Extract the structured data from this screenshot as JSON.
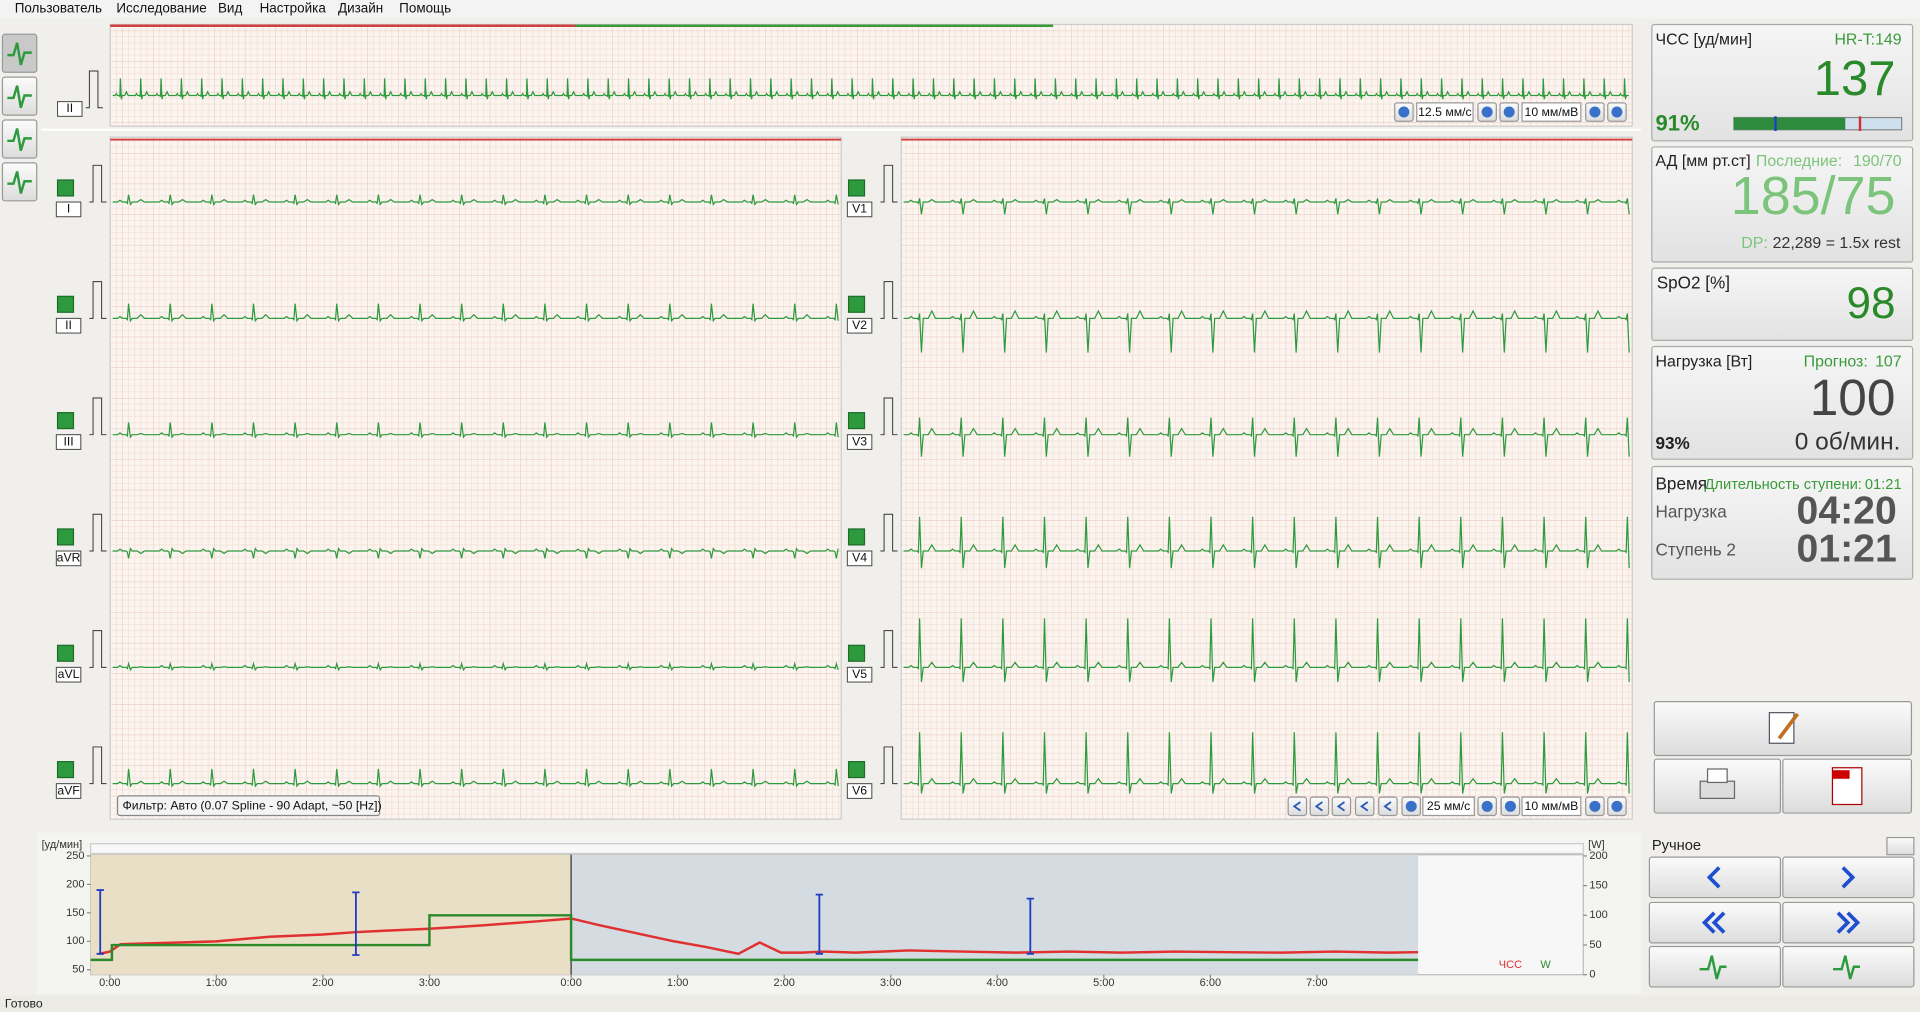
{
  "menu": [
    "Пользователь",
    "Исследование",
    "Вид",
    "Настройка",
    "Дизайн",
    "Помощь"
  ],
  "top_strip": {
    "lead": "II",
    "speed": "12.5 мм/с",
    "gain": "10 мм/мВ"
  },
  "leads_left": [
    "I",
    "II",
    "III",
    "aVR",
    "aVL",
    "aVF"
  ],
  "leads_right": [
    "V1",
    "V2",
    "V3",
    "V4",
    "V5",
    "V6"
  ],
  "filter": "Фильтр: Авто (0.07 Spline - 90 Adapt, ~50 [Hz])",
  "bottom_toolbar": {
    "speed": "25 мм/с",
    "gain": "10 мм/мВ"
  },
  "vitals": {
    "hr": {
      "title": "ЧСС [уд/мин]",
      "target": "HR-T:149",
      "value": "137",
      "percent": "91%"
    },
    "bp": {
      "title": "АД [мм рт.ст]",
      "last_label": "Последние:",
      "last": "190/70",
      "value": "185/75",
      "dp_label": "DP:",
      "dp": "22,289 = 1.5x rest"
    },
    "spo2": {
      "title": "SpO2 [%]",
      "value": "98"
    },
    "load": {
      "title": "Нагрузка [Вт]",
      "forecast_label": "Прогноз:",
      "forecast": "107",
      "value": "100",
      "percent": "93%",
      "rpm": "0 об/мин."
    },
    "time": {
      "title": "Время",
      "stage_duration_label": "Длительность ступени:",
      "stage_duration": "01:21",
      "load_label": "Нагрузка",
      "load_time": "04:20",
      "stage_label": "Ступень 2",
      "stage_time": "01:21"
    }
  },
  "trend": {
    "y_label": "[уд/мин]",
    "y2_label": "[W]",
    "ylim": [
      50,
      250
    ],
    "yticks": [
      250,
      200,
      150,
      100,
      50
    ],
    "y2lim": [
      0,
      200
    ],
    "y2ticks": [
      200,
      150,
      100,
      50,
      0
    ],
    "xlim": [
      -0.18,
      13.83
    ],
    "xticks": [
      {
        "value": 0,
        "label": "0:00"
      },
      {
        "value": 1,
        "label": "1:00"
      },
      {
        "value": 2,
        "label": "2:00"
      },
      {
        "value": 3,
        "label": "3:00"
      },
      {
        "value": 4.33,
        "label": "0:00"
      },
      {
        "value": 5.33,
        "label": "1:00"
      },
      {
        "value": 6.33,
        "label": "2:00"
      },
      {
        "value": 7.33,
        "label": "3:00"
      },
      {
        "value": 8.33,
        "label": "4:00"
      },
      {
        "value": 9.33,
        "label": "5:00"
      },
      {
        "value": 10.33,
        "label": "6:00"
      },
      {
        "value": 11.33,
        "label": "7:00"
      }
    ],
    "phases": [
      {
        "start": -0.18,
        "end": 4.33,
        "color": "#e9dec6"
      },
      {
        "start": 4.33,
        "end": 12.28,
        "color": "#d5dce1"
      }
    ],
    "series": [
      {
        "name": "ЧСС",
        "color": "#e03030",
        "x": [
          -0.1,
          0.0,
          0.1,
          0.5,
          1.0,
          1.5,
          2.0,
          2.3,
          2.5,
          3.0,
          3.5,
          4.0,
          4.33,
          4.6,
          5.0,
          5.3,
          5.6,
          5.9,
          6.1,
          6.3,
          6.5,
          6.7,
          7.0,
          7.5,
          8.0,
          8.5,
          9.0,
          9.5,
          10.0,
          10.5,
          11.0,
          11.5,
          12.0,
          12.28
        ],
        "values": [
          78,
          82,
          95,
          97,
          100,
          108,
          112,
          116,
          118,
          122,
          128,
          135,
          140,
          128,
          112,
          100,
          90,
          78,
          98,
          80,
          80,
          82,
          80,
          84,
          82,
          80,
          82,
          80,
          82,
          81,
          80,
          82,
          80,
          81
        ]
      },
      {
        "name": "W",
        "color": "#2a8a2a",
        "axis": "y2",
        "x": [
          -0.18,
          0.02,
          0.02,
          3.0,
          3.0,
          4.33,
          4.33,
          12.28
        ],
        "values": [
          25,
          25,
          50,
          50,
          100,
          100,
          25,
          25
        ]
      }
    ],
    "bp_marks": [
      {
        "x": -0.09,
        "high": 190,
        "low": 78
      },
      {
        "x": 2.31,
        "high": 186,
        "low": 76
      },
      {
        "x": 6.66,
        "high": 182,
        "low": 78
      },
      {
        "x": 8.64,
        "high": 175,
        "low": 78
      }
    ]
  },
  "manual_label": "Ручное",
  "status": "Готово"
}
